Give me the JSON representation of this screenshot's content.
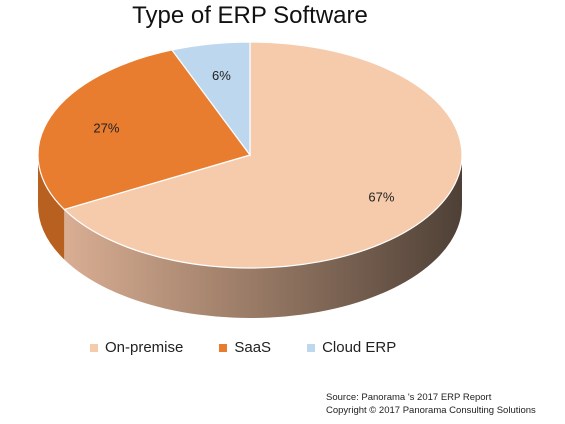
{
  "chart_data": {
    "type": "pie",
    "title": "Type of ERP Software",
    "style": "3d",
    "slices": [
      {
        "name": "On-premise",
        "value": 67,
        "label": "67%",
        "color": "#f5cbac",
        "side_color": "#6e5a4c"
      },
      {
        "name": "SaaS",
        "value": 27,
        "label": "27%",
        "color": "#e87d30",
        "side_color": "#b7601f"
      },
      {
        "name": "Cloud ERP",
        "value": 6,
        "label": "6%",
        "color": "#bdd7ee",
        "side_color": "#8aa4ba"
      }
    ],
    "legend_position": "bottom"
  },
  "footer": {
    "source": "Source: Panorama 's 2017 ERP Report",
    "copyright": "Copyright © 2017 Panorama Consulting Solutions"
  }
}
